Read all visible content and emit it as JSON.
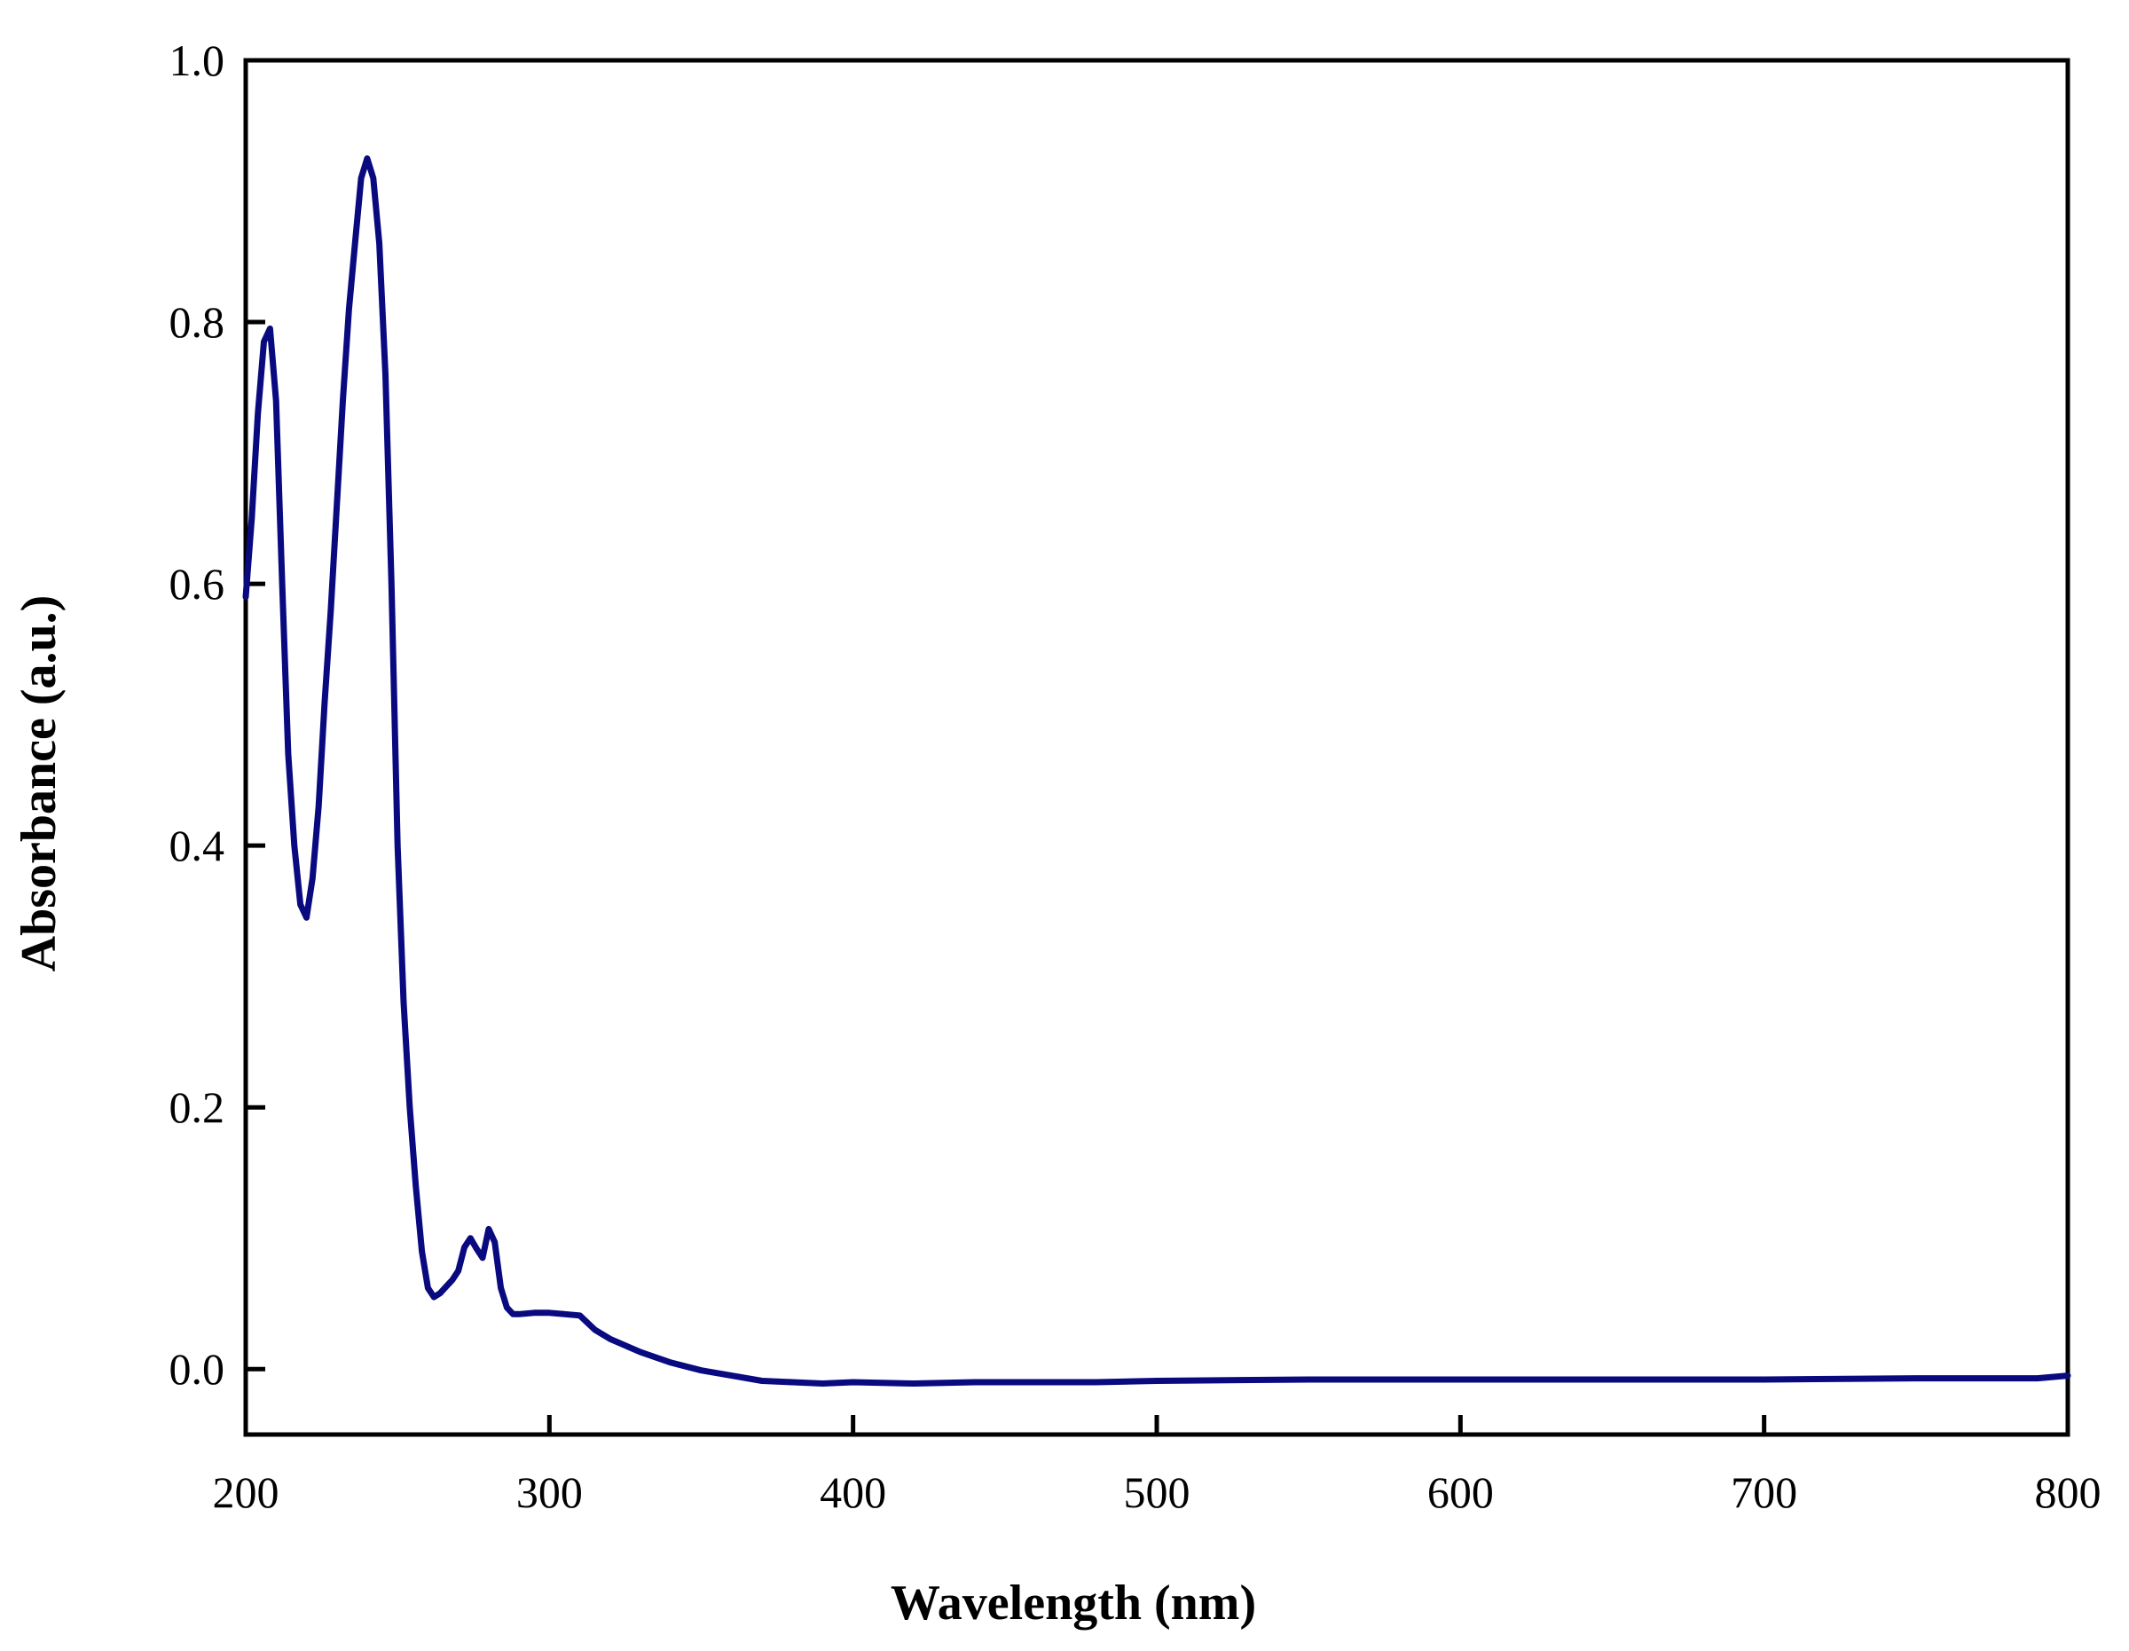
{
  "chart_data": {
    "type": "line",
    "title": "",
    "xlabel": "Wavelength (nm)",
    "ylabel": "Absorbance (a.u.)",
    "xlim": [
      200,
      800
    ],
    "ylim": [
      -0.05,
      1.0
    ],
    "x_ticks": [
      200,
      300,
      400,
      500,
      600,
      700,
      800
    ],
    "x_tick_labels": [
      "200",
      "300",
      "400",
      "500",
      "600",
      "700",
      "800"
    ],
    "y_ticks": [
      0.0,
      0.2,
      0.4,
      0.6,
      0.8,
      1.0
    ],
    "y_tick_labels": [
      "0.0",
      "0.2",
      "0.4",
      "0.6",
      "0.8",
      "1.0"
    ],
    "grid": false,
    "legend": "none",
    "line_color": "#0a0a80",
    "series": [
      {
        "points": [
          [
            200,
            0.59
          ],
          [
            202,
            0.65
          ],
          [
            204,
            0.73
          ],
          [
            206,
            0.785
          ],
          [
            208,
            0.795
          ],
          [
            210,
            0.74
          ],
          [
            212,
            0.6
          ],
          [
            214,
            0.47
          ],
          [
            216,
            0.4
          ],
          [
            218,
            0.355
          ],
          [
            220,
            0.345
          ],
          [
            222,
            0.375
          ],
          [
            224,
            0.43
          ],
          [
            226,
            0.51
          ],
          [
            228,
            0.58
          ],
          [
            230,
            0.66
          ],
          [
            232,
            0.74
          ],
          [
            234,
            0.81
          ],
          [
            236,
            0.86
          ],
          [
            238,
            0.91
          ],
          [
            240,
            0.925
          ],
          [
            242,
            0.91
          ],
          [
            244,
            0.86
          ],
          [
            246,
            0.76
          ],
          [
            248,
            0.6
          ],
          [
            250,
            0.4
          ],
          [
            252,
            0.28
          ],
          [
            254,
            0.2
          ],
          [
            256,
            0.14
          ],
          [
            258,
            0.09
          ],
          [
            260,
            0.062
          ],
          [
            262,
            0.055
          ],
          [
            264,
            0.058
          ],
          [
            266,
            0.063
          ],
          [
            268,
            0.068
          ],
          [
            270,
            0.075
          ],
          [
            272,
            0.093
          ],
          [
            274,
            0.1
          ],
          [
            276,
            0.092
          ],
          [
            278,
            0.085
          ],
          [
            280,
            0.107
          ],
          [
            282,
            0.097
          ],
          [
            284,
            0.062
          ],
          [
            286,
            0.047
          ],
          [
            288,
            0.042
          ],
          [
            290,
            0.042
          ],
          [
            295,
            0.043
          ],
          [
            300,
            0.043
          ],
          [
            305,
            0.042
          ],
          [
            310,
            0.041
          ],
          [
            315,
            0.03
          ],
          [
            320,
            0.023
          ],
          [
            325,
            0.018
          ],
          [
            330,
            0.013
          ],
          [
            340,
            0.005
          ],
          [
            350,
            -0.001
          ],
          [
            360,
            -0.005
          ],
          [
            370,
            -0.009
          ],
          [
            380,
            -0.01
          ],
          [
            390,
            -0.011
          ],
          [
            400,
            -0.01
          ],
          [
            420,
            -0.011
          ],
          [
            440,
            -0.01
          ],
          [
            460,
            -0.01
          ],
          [
            480,
            -0.01
          ],
          [
            500,
            -0.009
          ],
          [
            550,
            -0.008
          ],
          [
            600,
            -0.008
          ],
          [
            650,
            -0.008
          ],
          [
            700,
            -0.008
          ],
          [
            750,
            -0.007
          ],
          [
            790,
            -0.007
          ],
          [
            795,
            -0.006
          ],
          [
            800,
            -0.005
          ]
        ]
      }
    ]
  }
}
